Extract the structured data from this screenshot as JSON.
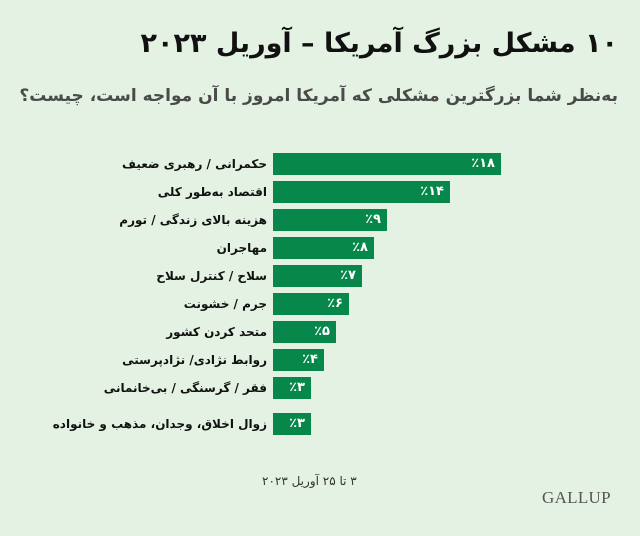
{
  "header": {
    "title": "۱۰ مشکل بزرگ آمریکا – آوریل ۲۰۲۳",
    "subtitle": "به‌نظر شما بزرگترین مشکلی که آمریکا امروز با آن مواجه است، چیست؟"
  },
  "footer": {
    "date_range": "۳ تا ۲۵ آوریل ۲۰۲۳",
    "source_logo": "GALLUP"
  },
  "colors": {
    "background": "#e3f2e2",
    "bar": "#07874a",
    "bar_text": "#ffffff"
  },
  "chart_data": {
    "type": "bar",
    "orientation": "horizontal",
    "title": "۱۰ مشکل بزرگ آمریکا – آوریل ۲۰۲۳",
    "subtitle": "به‌نظر شما بزرگترین مشکلی که آمریکا امروز با آن مواجه است، چیست؟",
    "xlabel": "",
    "ylabel": "",
    "unit": "%",
    "grid": false,
    "legend": "none",
    "categories": [
      "حکمرانی / رهبری ضعیف",
      "اقتصاد به‌طور کلی",
      "هزینه بالای زندگی / تورم",
      "مهاجران",
      "سلاح / کنترل سلاح",
      "جرم / خشونت",
      "متحد کردن کشور",
      "روابط نژادی/ نژادپرستی",
      "فقر / گرسنگی / بی‌خانمانی",
      "زوال اخلاق، وجدان، مذهب و خانواده"
    ],
    "values": [
      18,
      14,
      9,
      8,
      7,
      6,
      5,
      4,
      3,
      3
    ],
    "value_labels": [
      "٪۱۸",
      "٪۱۴",
      "٪۹",
      "٪۸",
      "٪۷",
      "٪۶",
      "٪۵",
      "٪۴",
      "٪۳",
      "٪۳"
    ],
    "annotation": "۳ تا ۲۵ آوریل ۲۰۲۳",
    "source": "GALLUP"
  }
}
